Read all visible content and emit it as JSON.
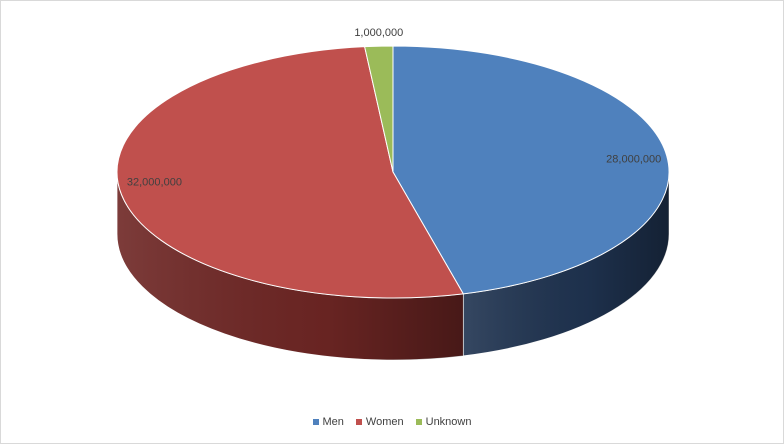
{
  "chart_data": {
    "type": "pie",
    "style": "3d",
    "categories": [
      "Men",
      "Women",
      "Unknown"
    ],
    "values": [
      28000000,
      32000000,
      1000000
    ],
    "data_labels": [
      "28,000,000",
      "32,000,000",
      "1,000,000"
    ],
    "colors": [
      "#4f81bd",
      "#c0504d",
      "#9bbb59"
    ],
    "side_colors": [
      "#1f3350",
      "#6e2624",
      "#5f7a33"
    ],
    "legend": {
      "placement": "bottom",
      "items": [
        "Men",
        "Women",
        "Unknown"
      ]
    }
  }
}
